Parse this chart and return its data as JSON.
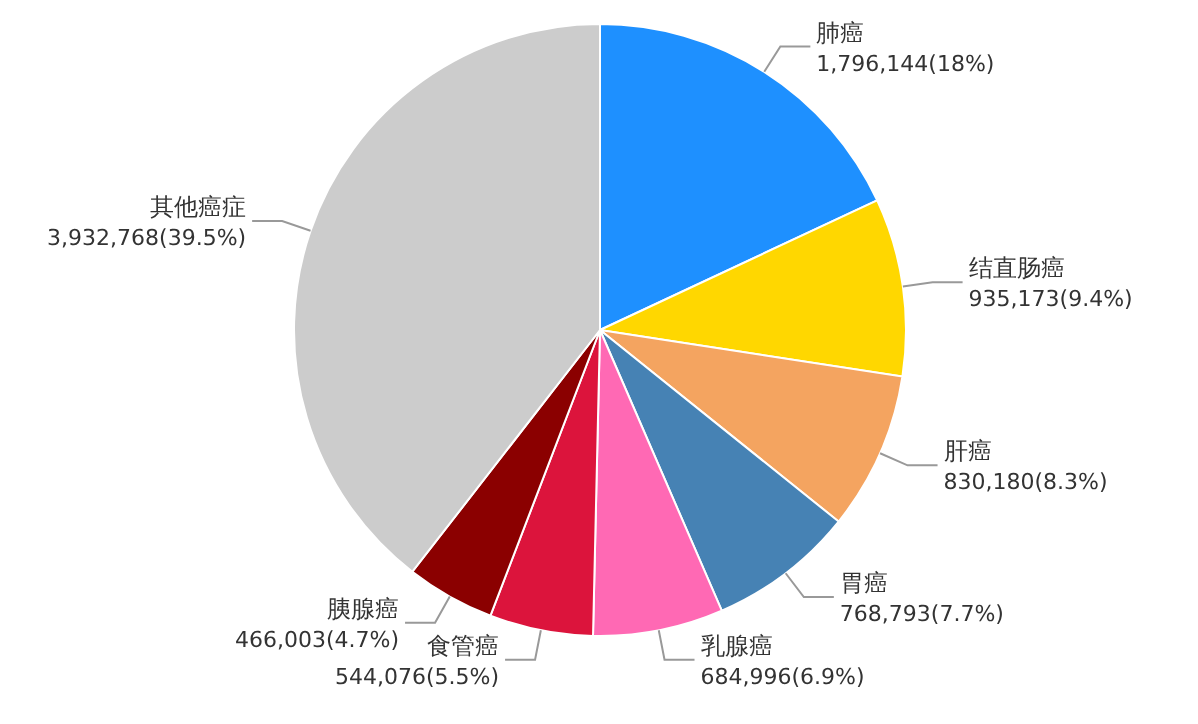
{
  "chart_data": {
    "type": "pie",
    "categories": [
      "肺癌",
      "结直肠癌",
      "肝癌",
      "胃癌",
      "乳腺癌",
      "食管癌",
      "胰腺癌",
      "其他癌症"
    ],
    "values": [
      1796144,
      935173,
      830180,
      768793,
      684996,
      544076,
      466003,
      3932768
    ],
    "value_labels": [
      "1,796,144(18%)",
      "935,173(9.4%)",
      "830,180(8.3%)",
      "768,793(7.7%)",
      "684,996(6.9%)",
      "544,076(5.5%)",
      "466,003(4.7%)",
      "3,932,768(39.5%)"
    ],
    "colors": [
      "#1e90ff",
      "#ffd700",
      "#f4a460",
      "#4682b4",
      "#ff69b4",
      "#dc143c",
      "#8b0000",
      "#cccccc"
    ]
  }
}
